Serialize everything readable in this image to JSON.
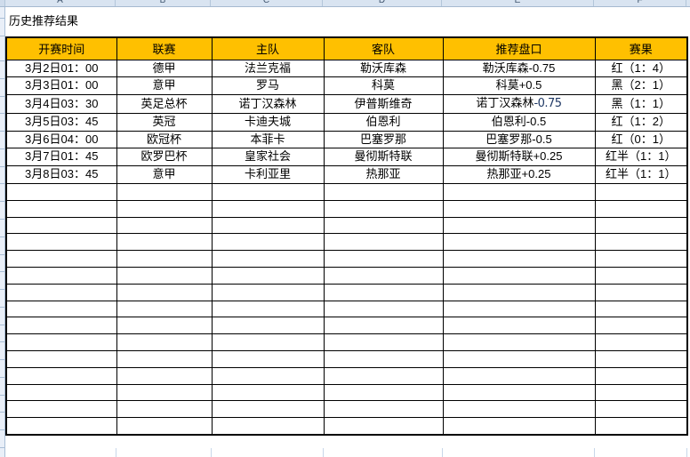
{
  "sheet": {
    "title": "历史推荐结果",
    "column_letters": [
      "A",
      "B",
      "C",
      "D",
      "E",
      "F"
    ],
    "colors": {
      "header_bg": "#FFC000",
      "result_red": "#FF0000",
      "result_black": "#000000",
      "grid_border": "#000000"
    },
    "table": {
      "headers": [
        "开赛时间",
        "联赛",
        "主队",
        "客队",
        "推荐盘口",
        "赛果"
      ],
      "rows": [
        {
          "time": "3月2日01：00",
          "league": "德甲",
          "home": "法兰克福",
          "away": "勒沃库森",
          "handicap": "勒沃库森-0.75",
          "result": "红（1：4）",
          "result_color": "red"
        },
        {
          "time": "3月3日01：00",
          "league": "意甲",
          "home": "罗马",
          "away": "科莫",
          "handicap": "科莫+0.5",
          "result": "黑（2：1）",
          "result_color": "black"
        },
        {
          "time": "3月4日03：30",
          "league": "英足总杯",
          "home": "诺丁汉森林",
          "away": "伊普斯维奇",
          "handicap": "诺丁汉森林-0.75",
          "handicap_alt_suffix": "-0.75",
          "result": "黑（1：1）",
          "result_color": "black"
        },
        {
          "time": "3月5日03：45",
          "league": "英冠",
          "home": "卡迪夫城",
          "away": "伯恩利",
          "handicap": "伯恩利-0.5",
          "result": "红（1：2）",
          "result_color": "red"
        },
        {
          "time": "3月6日04：00",
          "league": "欧冠杯",
          "home": "本菲卡",
          "away": "巴塞罗那",
          "handicap": "巴塞罗那-0.5",
          "result": "红（0：1）",
          "result_color": "red"
        },
        {
          "time": "3月7日01：45",
          "league": "欧罗巴杯",
          "home": "皇家社会",
          "away": "曼彻斯特联",
          "handicap": "曼彻斯特联+0.25",
          "result": "红半（1：1）",
          "result_color": "red"
        },
        {
          "time": "3月8日03：45",
          "league": "意甲",
          "home": "卡利亚里",
          "away": "热那亚",
          "handicap": "热那亚+0.25",
          "result": "红半（1：1）",
          "result_color": "red"
        }
      ],
      "empty_row_count": 15
    }
  }
}
